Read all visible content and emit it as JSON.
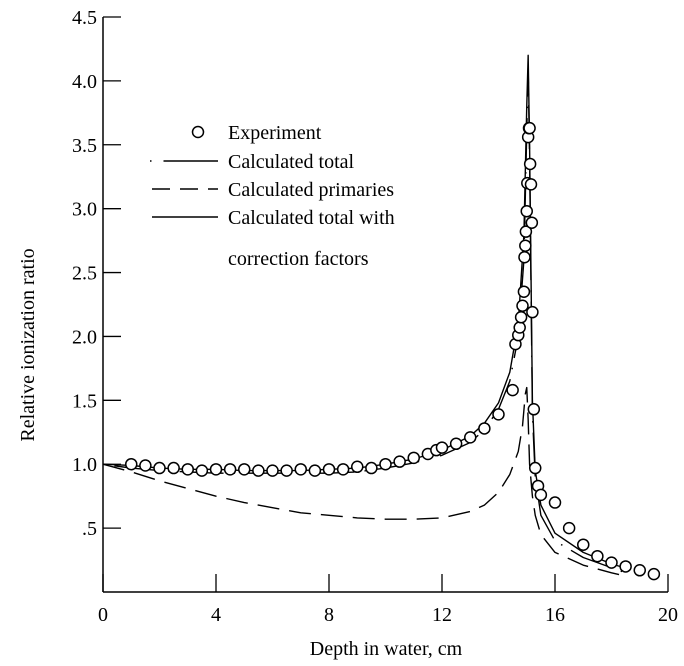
{
  "chart_data": {
    "type": "line",
    "title": "",
    "xlabel": "Depth in water, cm",
    "ylabel": "Relative ionization ratio",
    "xlim": [
      0,
      20
    ],
    "ylim": [
      0,
      4.5
    ],
    "x_ticks": [
      0,
      4,
      8,
      12,
      16,
      20
    ],
    "x_tick_labels": [
      "0",
      "4",
      "8",
      "12",
      "16",
      "20"
    ],
    "y_ticks": [
      0.5,
      1.0,
      1.5,
      2.0,
      2.5,
      3.0,
      3.5,
      4.0,
      4.5
    ],
    "y_tick_labels": [
      ".5",
      "1.0",
      "1.5",
      "2.0",
      "2.5",
      "3.0",
      "3.5",
      "4.0",
      "4.5"
    ],
    "grid": false,
    "legend_position": "upper-left",
    "legend": {
      "experiment": "Experiment",
      "total": "Calculated total",
      "primaries": "Calculated primaries",
      "corrected_line1": "Calculated total with",
      "corrected_line2": "correction factors"
    },
    "series": [
      {
        "name": "Experiment",
        "style": "markers",
        "x": [
          1.0,
          1.5,
          2.0,
          2.5,
          3.0,
          3.5,
          4.0,
          4.5,
          5.0,
          5.5,
          6.0,
          6.5,
          7.0,
          7.5,
          8.0,
          8.5,
          9.0,
          9.5,
          10.0,
          10.5,
          11.0,
          11.5,
          11.8,
          12.0,
          12.5,
          13.0,
          13.5,
          14.0,
          14.5,
          14.6,
          14.7,
          14.75,
          14.8,
          14.85,
          14.9,
          14.92,
          14.95,
          14.97,
          15.0,
          15.02,
          15.05,
          15.08,
          15.1,
          15.12,
          15.15,
          15.18,
          15.2,
          15.25,
          15.3,
          15.4,
          15.5,
          16.0,
          16.5,
          17.0,
          17.5,
          18.0,
          18.5,
          19.0,
          19.5
        ],
        "y": [
          1.0,
          0.99,
          0.97,
          0.97,
          0.96,
          0.95,
          0.96,
          0.96,
          0.96,
          0.95,
          0.95,
          0.95,
          0.96,
          0.95,
          0.96,
          0.96,
          0.98,
          0.97,
          1.0,
          1.02,
          1.05,
          1.08,
          1.11,
          1.13,
          1.16,
          1.21,
          1.28,
          1.39,
          1.58,
          1.94,
          2.01,
          2.07,
          2.15,
          2.24,
          2.35,
          2.62,
          2.71,
          2.82,
          2.98,
          3.2,
          3.56,
          3.63,
          3.63,
          3.35,
          3.19,
          2.89,
          2.19,
          1.43,
          0.97,
          0.83,
          0.76,
          0.7,
          0.5,
          0.37,
          0.28,
          0.23,
          0.2,
          0.17,
          0.14
        ]
      },
      {
        "name": "Calculated total",
        "style": "dash-dot",
        "x": [
          0.0,
          1.0,
          2.0,
          3.0,
          4.0,
          5.0,
          6.0,
          7.0,
          8.0,
          9.0,
          10.0,
          11.0,
          12.0,
          13.0,
          13.5,
          14.0,
          14.4,
          14.7,
          14.9,
          15.0,
          15.05,
          15.1,
          15.2,
          15.3,
          15.5,
          16.0,
          17.0,
          18.0,
          18.5
        ],
        "y": [
          1.0,
          0.97,
          0.95,
          0.94,
          0.93,
          0.93,
          0.93,
          0.93,
          0.93,
          0.94,
          0.97,
          1.01,
          1.07,
          1.17,
          1.27,
          1.43,
          1.65,
          2.0,
          2.6,
          3.6,
          4.1,
          3.4,
          1.4,
          0.9,
          0.6,
          0.4,
          0.27,
          0.19,
          0.15
        ]
      },
      {
        "name": "Calculated primaries",
        "style": "dashed",
        "x": [
          0.0,
          1.0,
          2.0,
          3.0,
          4.0,
          5.0,
          6.0,
          7.0,
          8.0,
          9.0,
          10.0,
          11.0,
          12.0,
          13.0,
          13.5,
          14.0,
          14.4,
          14.7,
          14.85,
          14.95,
          15.0,
          15.05,
          15.1,
          15.2,
          15.3,
          15.5,
          16.0,
          17.0,
          18.0,
          18.4
        ],
        "y": [
          1.0,
          0.94,
          0.87,
          0.81,
          0.75,
          0.7,
          0.66,
          0.62,
          0.6,
          0.58,
          0.57,
          0.57,
          0.58,
          0.63,
          0.68,
          0.78,
          0.92,
          1.1,
          1.3,
          1.55,
          1.6,
          1.35,
          1.0,
          0.75,
          0.6,
          0.45,
          0.31,
          0.21,
          0.15,
          0.13
        ]
      },
      {
        "name": "Calculated total with correction factors",
        "style": "solid",
        "x": [
          0.0,
          1.0,
          2.0,
          3.0,
          4.0,
          5.0,
          6.0,
          7.0,
          8.0,
          9.0,
          10.0,
          11.0,
          12.0,
          13.0,
          13.5,
          14.0,
          14.4,
          14.7,
          14.9,
          15.0,
          15.05,
          15.1,
          15.2,
          15.3,
          15.5,
          16.0,
          17.0,
          18.0,
          18.6
        ],
        "y": [
          1.0,
          0.99,
          0.97,
          0.96,
          0.96,
          0.95,
          0.95,
          0.95,
          0.96,
          0.97,
          1.0,
          1.04,
          1.11,
          1.22,
          1.32,
          1.48,
          1.72,
          2.1,
          2.8,
          3.8,
          4.2,
          3.5,
          1.5,
          0.95,
          0.68,
          0.46,
          0.31,
          0.22,
          0.18
        ]
      }
    ]
  }
}
